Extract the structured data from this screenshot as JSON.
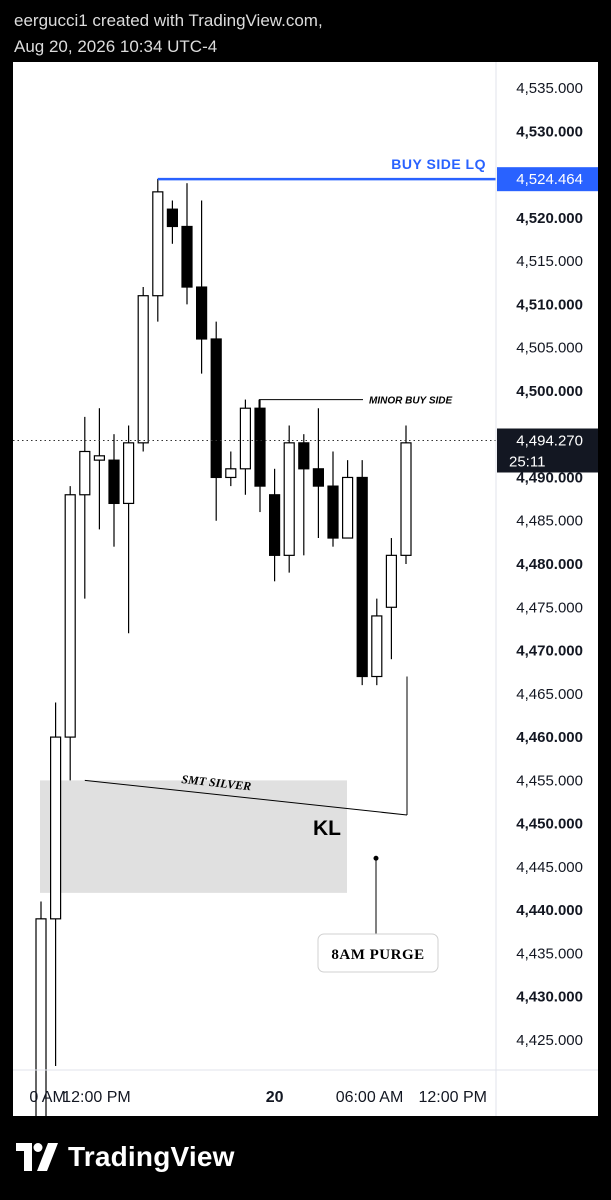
{
  "header": {
    "line1": "eergucci1 created with TradingView.com,",
    "line2": "Aug 20, 2026 10:34 UTC-4"
  },
  "footer": {
    "brand": "TradingView",
    "logo_icon": "tradingview-logo-icon"
  },
  "colors": {
    "up_fill": "#ffffff",
    "down_fill": "#000000",
    "candle_stroke": "#000000",
    "buy_side_line": "#2962ff",
    "zone_fill": "#e0e0e0",
    "price_label_bg": "#2962ff",
    "last_price_bg": "#131722"
  },
  "chart_data": {
    "type": "candlestick",
    "y_axis": {
      "range": [
        4421,
        4540
      ],
      "ticks": [
        "4,535.000",
        "4,530.000",
        "4,525.000",
        "4,520.000",
        "4,515.000",
        "4,510.000",
        "4,505.000",
        "4,500.000",
        "4,495.000",
        "4,490.000",
        "4,485.000",
        "4,480.000",
        "4,475.000",
        "4,470.000",
        "4,465.000",
        "4,460.000",
        "4,455.000",
        "4,450.000",
        "4,445.000",
        "4,440.000",
        "4,435.000",
        "4,430.000",
        "4,425.000"
      ],
      "tick_values": [
        4535,
        4530,
        4525,
        4520,
        4515,
        4510,
        4505,
        4500,
        4495,
        4490,
        4485,
        4480,
        4475,
        4470,
        4465,
        4460,
        4455,
        4450,
        4445,
        4440,
        4435,
        4430,
        4425
      ],
      "bold_ticks": [
        4530,
        4520,
        4510,
        4500,
        4490,
        4480,
        4470,
        4460,
        4450,
        4440,
        4430
      ]
    },
    "x_axis": {
      "labels": [
        "0 AM",
        "12:00 PM",
        "20",
        "06:00 AM",
        "12:00 PM"
      ],
      "label_slots": [
        -0.8,
        3.8,
        16.0,
        22.5,
        28.2
      ]
    },
    "candles": [
      {
        "o": 4415,
        "h": 4441,
        "l": 4410,
        "c": 4439
      },
      {
        "o": 4439,
        "h": 4464,
        "l": 4422,
        "c": 4460
      },
      {
        "o": 4460,
        "h": 4489,
        "l": 4455,
        "c": 4488
      },
      {
        "o": 4488,
        "h": 4497,
        "l": 4476,
        "c": 4493
      },
      {
        "o": 4492,
        "h": 4498,
        "l": 4484,
        "c": 4492.5
      },
      {
        "o": 4492,
        "h": 4495,
        "l": 4482,
        "c": 4487
      },
      {
        "o": 4487,
        "h": 4496,
        "l": 4472,
        "c": 4494
      },
      {
        "o": 4494,
        "h": 4512,
        "l": 4493,
        "c": 4511
      },
      {
        "o": 4511,
        "h": 4524.5,
        "l": 4508,
        "c": 4523
      },
      {
        "o": 4521,
        "h": 4522,
        "l": 4517,
        "c": 4519
      },
      {
        "o": 4519,
        "h": 4524,
        "l": 4510,
        "c": 4512
      },
      {
        "o": 4512,
        "h": 4522,
        "l": 4502,
        "c": 4506
      },
      {
        "o": 4506,
        "h": 4508,
        "l": 4485,
        "c": 4490
      },
      {
        "o": 4490,
        "h": 4493,
        "l": 4489,
        "c": 4491
      },
      {
        "o": 4491,
        "h": 4499,
        "l": 4488,
        "c": 4498
      },
      {
        "o": 4498,
        "h": 4499,
        "l": 4486,
        "c": 4489
      },
      {
        "o": 4488,
        "h": 4491,
        "l": 4478,
        "c": 4481
      },
      {
        "o": 4481,
        "h": 4496,
        "l": 4479,
        "c": 4494
      },
      {
        "o": 4494,
        "h": 4495,
        "l": 4481,
        "c": 4491
      },
      {
        "o": 4491,
        "h": 4498,
        "l": 4483,
        "c": 4489
      },
      {
        "o": 4489,
        "h": 4493,
        "l": 4482,
        "c": 4483
      },
      {
        "o": 4483,
        "h": 4492,
        "l": 4483,
        "c": 4490
      },
      {
        "o": 4490,
        "h": 4492,
        "l": 4466,
        "c": 4467
      },
      {
        "o": 4467,
        "h": 4476,
        "l": 4466,
        "c": 4474
      },
      {
        "o": 4475,
        "h": 4483,
        "l": 4469,
        "c": 4481
      },
      {
        "o": 4481,
        "h": 4496,
        "l": 4480,
        "c": 4494
      }
    ],
    "annotations": {
      "buy_side_label": "BUY SIDE LQ",
      "buy_side_price": 4524.464,
      "buy_side_price_label": "4,524.464",
      "minor_buy_side_label": "MINOR BUY SIDE",
      "minor_buy_side_price": 4499,
      "smt_label": "SMT SILVER",
      "smt_start": {
        "slot": 3,
        "price": 4455
      },
      "smt_end": {
        "slot": 25,
        "price": 4451
      },
      "zone_label": "KL",
      "zone_top": 4455,
      "zone_bottom": 4442,
      "purge_label": "8AM PURGE",
      "purge_point_price": 4446
    },
    "last_price": {
      "value": 4494.27,
      "label": "4,494.270",
      "countdown": "25:11"
    }
  }
}
